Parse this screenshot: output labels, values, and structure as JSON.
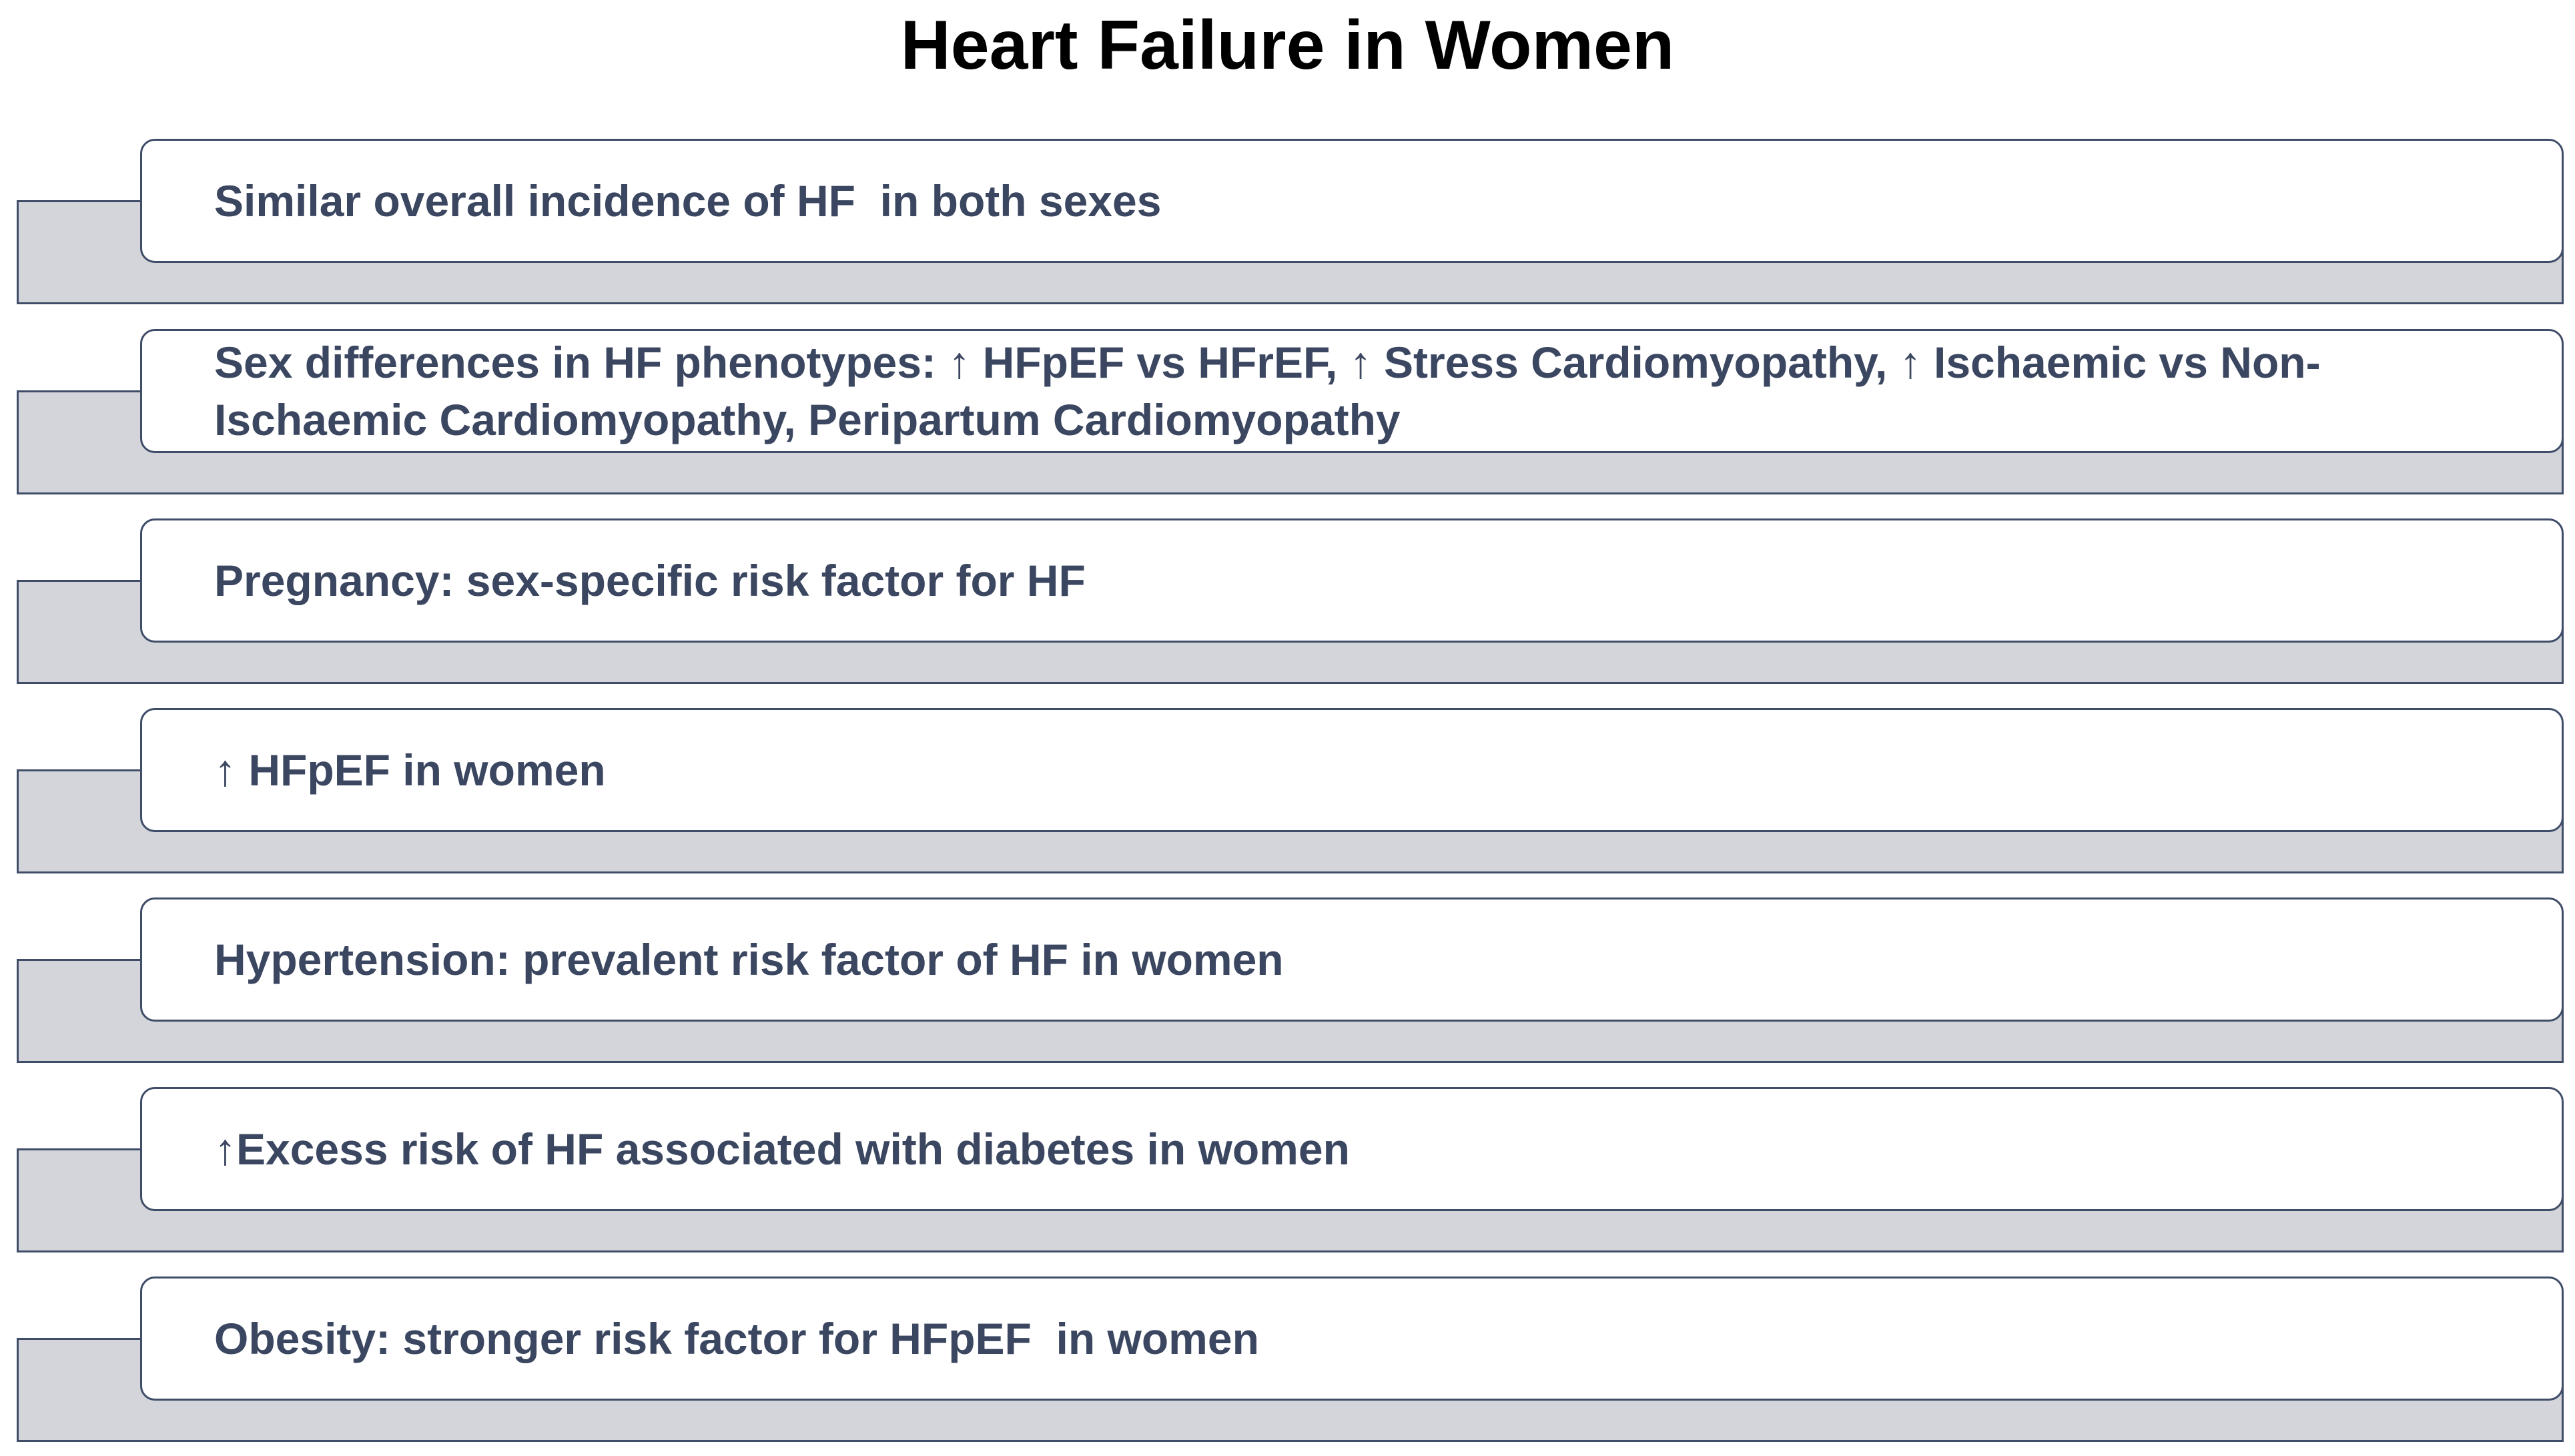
{
  "title": "Heart Failure in Women",
  "items": [
    {
      "label": "Similar overall incidence of HF  in both sexes"
    },
    {
      "label": "Sex differences in HF phenotypes: ↑ HFpEF vs HFrEF, ↑ Stress Cardiomyopathy, ↑ Ischaemic vs Non-\nIschaemic Cardiomyopathy, Peripartum Cardiomyopathy"
    },
    {
      "label": "Pregnancy: sex-specific risk factor for HF"
    },
    {
      "label": "↑ HFpEF in women"
    },
    {
      "label": "Hypertension: prevalent risk factor of HF in women"
    },
    {
      "label": "↑Excess risk of HF associated with diabetes in women"
    },
    {
      "label": "Obesity: stronger risk factor for HFpEF  in women"
    }
  ],
  "colors": {
    "border": "#3f4d68",
    "tab_fill": "#d3d5da",
    "text": "#3b4660",
    "title": "#000000"
  }
}
